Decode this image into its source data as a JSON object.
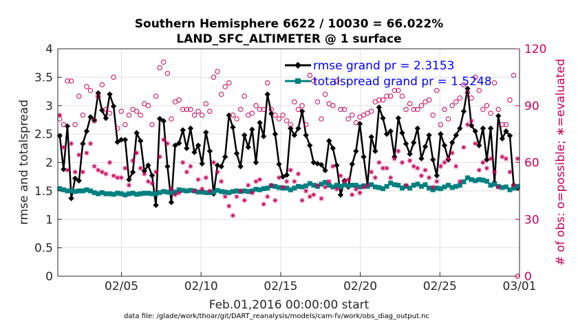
{
  "chart_data": {
    "type": "line",
    "title_line1": "Southern Hemisphere 6622 / 10030 = 66.022%",
    "title_line2": "LAND_SFC_ALTIMETER @ 1 surface",
    "xlabel": "Feb.01,2016 00:00:00 start",
    "ylabel": "rmse and totalspread",
    "ylabel_right": "# of obs: o=possible; ∗=evaluated",
    "footer": "data file: /glade/work/thoar/git/DART_reanalysis/models/cam-fv/work/obs_diag_output.nc",
    "xlim": [
      1,
      30
    ],
    "ylim": [
      0,
      4
    ],
    "ylim_right": [
      0,
      120
    ],
    "x_ticks": [
      {
        "value": 5,
        "label": "02/05"
      },
      {
        "value": 10,
        "label": "02/10"
      },
      {
        "value": 15,
        "label": "02/15"
      },
      {
        "value": 20,
        "label": "02/20"
      },
      {
        "value": 25,
        "label": "02/25"
      },
      {
        "value": 30,
        "label": "03/01"
      }
    ],
    "y_ticks": [
      {
        "value": 0,
        "label": "0"
      },
      {
        "value": 0.5,
        "label": "0.5"
      },
      {
        "value": 1,
        "label": "1"
      },
      {
        "value": 1.5,
        "label": "1.5"
      },
      {
        "value": 2,
        "label": "2"
      },
      {
        "value": 2.5,
        "label": "2.5"
      },
      {
        "value": 3,
        "label": "3"
      },
      {
        "value": 3.5,
        "label": "3.5"
      },
      {
        "value": 4,
        "label": "4"
      }
    ],
    "y_ticks_right": [
      {
        "value": 0,
        "label": "0"
      },
      {
        "value": 30,
        "label": "30"
      },
      {
        "value": 60,
        "label": "60"
      },
      {
        "value": 90,
        "label": "90"
      },
      {
        "value": 120,
        "label": "120"
      }
    ],
    "grid": true,
    "series": [
      {
        "name": "rmse",
        "legend": "rmse grand pr = 2.3153",
        "color": "#000000",
        "marker": "diamond",
        "values": [
          2.47,
          1.88,
          2.64,
          1.37,
          1.72,
          1.68,
          2.33,
          2.55,
          2.8,
          2.75,
          3.22,
          2.92,
          2.78,
          3.2,
          2.99,
          2.36,
          2.4,
          2.4,
          1.7,
          1.83,
          2.52,
          2.38,
          1.85,
          1.95,
          1.77,
          1.25,
          2.77,
          2.73,
          1.93,
          1.3,
          2.3,
          2.34,
          2.57,
          2.25,
          2.6,
          2.18,
          2.3,
          1.98,
          2.53,
          2.2,
          1.45,
          1.95,
          1.93,
          2.1,
          2.83,
          2.62,
          2.16,
          1.93,
          2.48,
          2.27,
          2.58,
          2.0,
          2.7,
          2.46,
          3.2,
          2.86,
          2.5,
          1.97,
          1.75,
          1.78,
          2.6,
          2.48,
          2.6,
          2.9,
          2.48,
          2.3,
          2.0,
          1.98,
          1.96,
          1.86,
          2.38,
          2.25,
          1.95,
          1.43,
          1.68,
          1.57,
          1.97,
          2.2,
          2.68,
          2.1,
          1.6,
          2.45,
          2.2,
          2.97,
          2.78,
          2.5,
          2.55,
          2.1,
          2.78,
          2.52,
          2.33,
          2.15,
          2.35,
          2.6,
          2.07,
          2.28,
          2.48,
          2.05,
          1.77,
          2.5,
          2.3,
          2.05,
          2.35,
          2.48,
          2.6,
          2.9,
          3.3,
          2.65,
          2.55,
          2.3,
          2.6,
          2.05,
          2.6,
          1.65,
          2.82,
          2.42,
          2.55,
          2.47,
          1.6,
          1.55
        ]
      },
      {
        "name": "totalspread",
        "legend": "totalspread grand pr = 1.5248",
        "color": "#008080",
        "marker": "square",
        "values": [
          1.54,
          1.52,
          1.5,
          1.5,
          1.49,
          1.5,
          1.5,
          1.52,
          1.5,
          1.47,
          1.45,
          1.47,
          1.45,
          1.45,
          1.44,
          1.46,
          1.45,
          1.43,
          1.45,
          1.46,
          1.44,
          1.45,
          1.46,
          1.46,
          1.45,
          1.45,
          1.47,
          1.49,
          1.48,
          1.47,
          1.48,
          1.52,
          1.51,
          1.5,
          1.51,
          1.5,
          1.48,
          1.48,
          1.47,
          1.47,
          1.48,
          1.51,
          1.49,
          1.48,
          1.47,
          1.49,
          1.5,
          1.49,
          1.5,
          1.49,
          1.5,
          1.53,
          1.52,
          1.54,
          1.55,
          1.59,
          1.58,
          1.56,
          1.55,
          1.55,
          1.52,
          1.55,
          1.58,
          1.57,
          1.59,
          1.63,
          1.6,
          1.58,
          1.62,
          1.65,
          1.6,
          1.57,
          1.6,
          1.58,
          1.61,
          1.59,
          1.6,
          1.6,
          1.57,
          1.59,
          1.58,
          1.61,
          1.57,
          1.56,
          1.54,
          1.58,
          1.64,
          1.61,
          1.6,
          1.55,
          1.58,
          1.55,
          1.6,
          1.62,
          1.58,
          1.61,
          1.55,
          1.52,
          1.55,
          1.54,
          1.57,
          1.6,
          1.56,
          1.58,
          1.6,
          1.66,
          1.73,
          1.7,
          1.68,
          1.7,
          1.69,
          1.67,
          1.6,
          1.62,
          1.58,
          1.56,
          1.57,
          1.52,
          1.55,
          1.58
        ]
      },
      {
        "name": "possible",
        "color": "#c8005a",
        "marker": "circle",
        "axis": "right",
        "values": [
          83,
          80,
          103,
          103,
          80,
          95,
          85,
          100,
          98,
          82,
          95,
          101,
          88,
          86,
          105,
          78,
          87,
          80,
          85,
          88,
          87,
          85,
          91,
          90,
          80,
          95,
          110,
          113,
          107,
          83,
          92,
          93,
          88,
          88,
          88,
          85,
          87,
          85,
          91,
          87,
          105,
          108,
          96,
          100,
          102,
          85,
          83,
          88,
          95,
          85,
          86,
          90,
          88,
          88,
          102,
          88,
          85,
          83,
          85,
          82,
          80,
          92,
          88,
          90,
          80,
          106,
          103,
          92,
          83,
          96,
          91,
          90,
          103,
          88,
          88,
          83,
          85,
          81,
          84,
          85,
          86,
          87,
          92,
          93,
          93,
          95,
          95,
          98,
          98,
          95,
          88,
          91,
          88,
          88,
          90,
          92,
          93,
          85,
          98,
          80,
          88,
          83,
          90,
          92,
          94,
          101,
          97,
          94,
          105,
          98,
          88,
          90,
          86,
          102,
          88,
          80,
          80,
          93,
          106,
          0
        ]
      },
      {
        "name": "evaluated",
        "color": "#c8005a",
        "marker": "asterisk",
        "axis": "right",
        "values": [
          85,
          68,
          56,
          70,
          55,
          64,
          55,
          65,
          70,
          58,
          56,
          55,
          54,
          60,
          53,
          52,
          52,
          57,
          48,
          61,
          65,
          57,
          54,
          50,
          49,
          55,
          63,
          72,
          70,
          46,
          43,
          44,
          60,
          55,
          58,
          45,
          51,
          46,
          52,
          45,
          60,
          55,
          50,
          42,
          37,
          32,
          42,
          45,
          40,
          48,
          44,
          50,
          51,
          38,
          42,
          48,
          40,
          52,
          47,
          50,
          56,
          50,
          54,
          40,
          45,
          42,
          43,
          48,
          41,
          47,
          50,
          58,
          46,
          53,
          50,
          51,
          43,
          46,
          44,
          47,
          48,
          55,
          52,
          60,
          57,
          57,
          52,
          62,
          66,
          60,
          48,
          61,
          58,
          57,
          53,
          56,
          52,
          47,
          50,
          58,
          60,
          62,
          65,
          58,
          50,
          68,
          80,
          82,
          70,
          56,
          60,
          57,
          62,
          55,
          47,
          63,
          62,
          55,
          48,
          62
        ]
      }
    ]
  }
}
